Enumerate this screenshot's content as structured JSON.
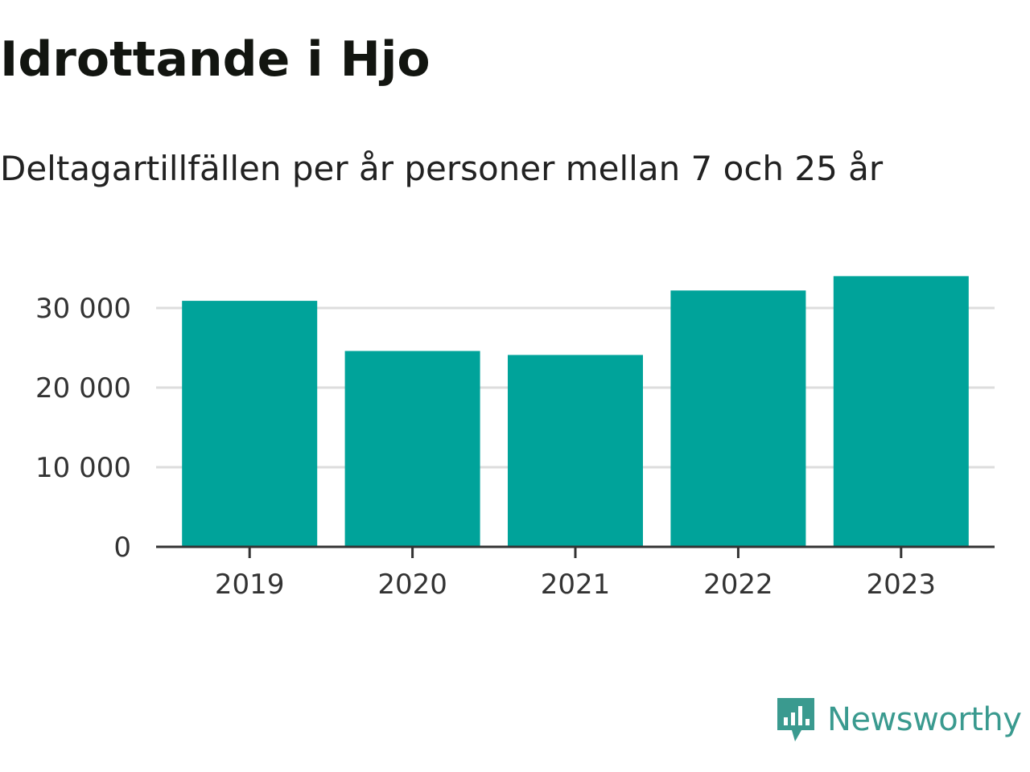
{
  "title": "Idrottande i Hjo",
  "subtitle": "Deltagartillfällen per år personer mellan 7 och 25 år",
  "brand": {
    "name": "Newsworthy",
    "icon": "newsworthy-logo-icon",
    "color": "#3a9a8f"
  },
  "chart_data": {
    "type": "bar",
    "categories": [
      "2019",
      "2020",
      "2021",
      "2022",
      "2023"
    ],
    "values": [
      30900,
      24600,
      24100,
      32200,
      34000
    ],
    "yticks": [
      0,
      10000,
      20000,
      30000
    ],
    "ytick_labels": [
      "0",
      "10 000",
      "20 000",
      "30 000"
    ],
    "ylim": [
      0,
      36000
    ],
    "grid": true,
    "bar_color": "#00a39a",
    "gridline_color": "#dddddd",
    "axis_color": "#333333"
  }
}
